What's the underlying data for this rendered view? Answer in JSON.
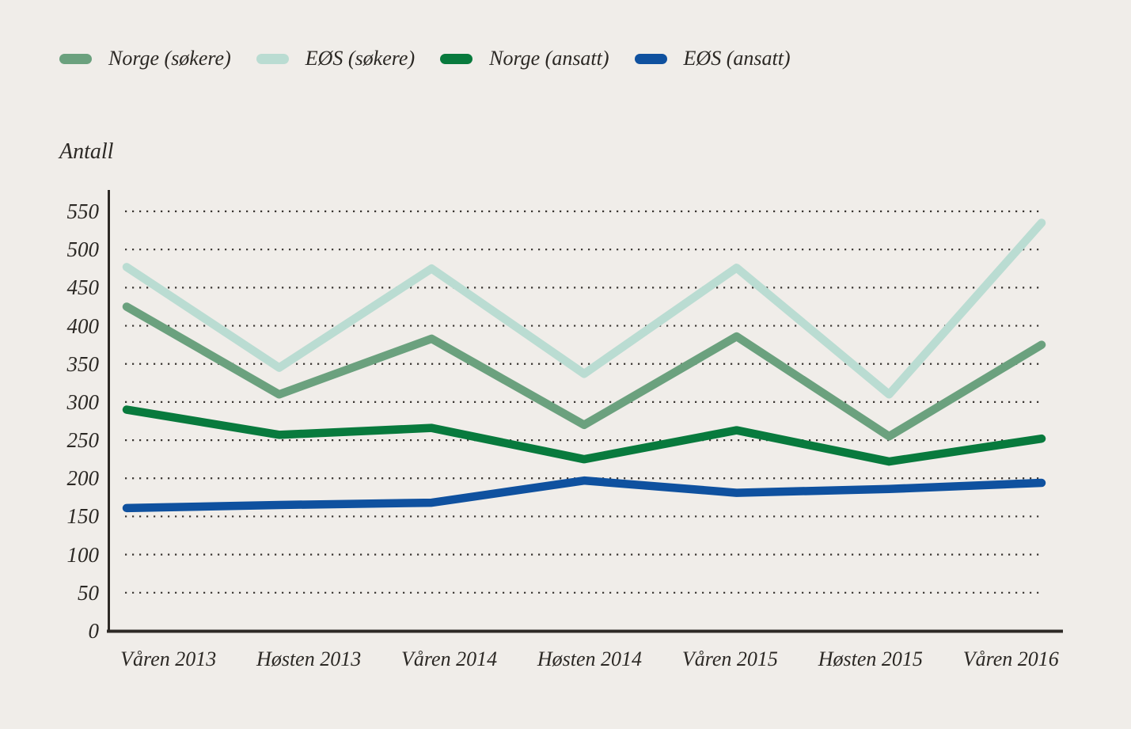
{
  "page": {
    "background_color": "#f0ede9",
    "text_color": "#2b2824",
    "axis_color": "#2e2a26",
    "gridline_color": "#3a3632"
  },
  "chart_data": {
    "type": "line",
    "title": "",
    "ylabel": "Antall",
    "xlabel": "",
    "categories": [
      "Våren 2013",
      "Høsten 2013",
      "Våren 2014",
      "Høsten 2014",
      "Våren 2015",
      "Høsten 2015",
      "Våren 2016"
    ],
    "series": [
      {
        "name": "Norge (søkere)",
        "color": "#6ba17e",
        "values": [
          425,
          310,
          383,
          270,
          386,
          255,
          375
        ]
      },
      {
        "name": "EØS (søkere)",
        "color": "#badcd2",
        "values": [
          477,
          345,
          475,
          337,
          476,
          310,
          535
        ]
      },
      {
        "name": "Norge (ansatt)",
        "color": "#087a3d",
        "values": [
          290,
          257,
          266,
          225,
          263,
          222,
          252
        ]
      },
      {
        "name": "EØS (ansatt)",
        "color": "#0f519f",
        "values": [
          161,
          165,
          168,
          197,
          181,
          186,
          194
        ]
      }
    ],
    "y_ticks": [
      0,
      50,
      100,
      150,
      200,
      250,
      300,
      350,
      400,
      450,
      500,
      550
    ],
    "ylim": [
      0,
      550
    ],
    "grid": "horizontal-dotted",
    "legend_position": "top-left"
  }
}
